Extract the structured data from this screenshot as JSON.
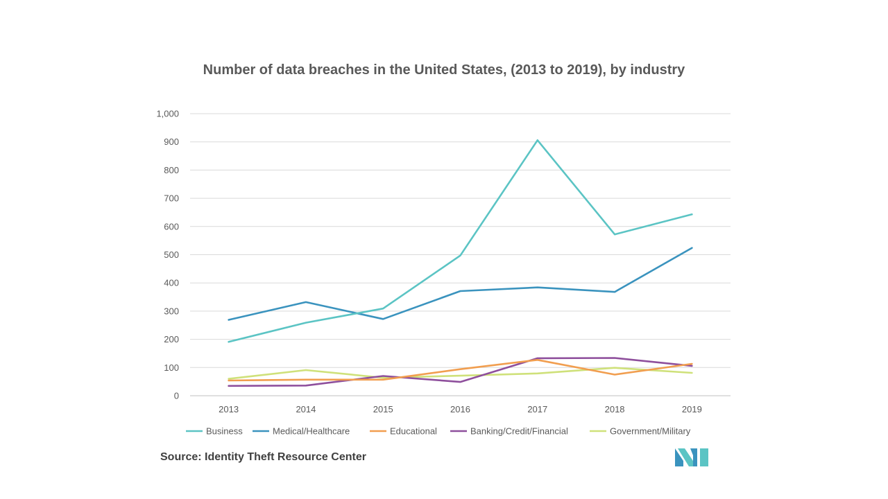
{
  "chart_data": {
    "type": "line",
    "title": "Number of data breaches in the United States, (2013 to 2019), by industry",
    "xlabel": "",
    "ylabel": "",
    "categories": [
      "2013",
      "2014",
      "2015",
      "2016",
      "2017",
      "2018",
      "2019"
    ],
    "ylim": [
      0,
      1000
    ],
    "yticks": [
      "0",
      "100",
      "200",
      "300",
      "400",
      "500",
      "600",
      "700",
      "800",
      "900",
      "1,000"
    ],
    "grid": true,
    "legend_position": "bottom",
    "series": [
      {
        "name": "Business",
        "color": "#5bc4c4",
        "values": [
          191,
          259,
          309,
          497,
          906,
          572,
          643
        ]
      },
      {
        "name": "Medical/Healthcare",
        "color": "#3a93be",
        "values": [
          269,
          332,
          272,
          371,
          384,
          368,
          524
        ]
      },
      {
        "name": "Educational",
        "color": "#f19e4f",
        "values": [
          54,
          57,
          57,
          94,
          127,
          75,
          113
        ]
      },
      {
        "name": "Banking/Credit/Financial",
        "color": "#8e4f9c",
        "values": [
          35,
          36,
          70,
          49,
          133,
          134,
          106
        ]
      },
      {
        "name": "Government/Military",
        "color": "#cfe17a",
        "values": [
          60,
          91,
          64,
          71,
          79,
          99,
          81
        ]
      }
    ]
  },
  "source": "Source: Identity Theft Resource Center",
  "logo": {
    "icon": "mordor-intelligence-logo-icon",
    "colors": [
      "#3a93be",
      "#5bc4c4"
    ]
  }
}
